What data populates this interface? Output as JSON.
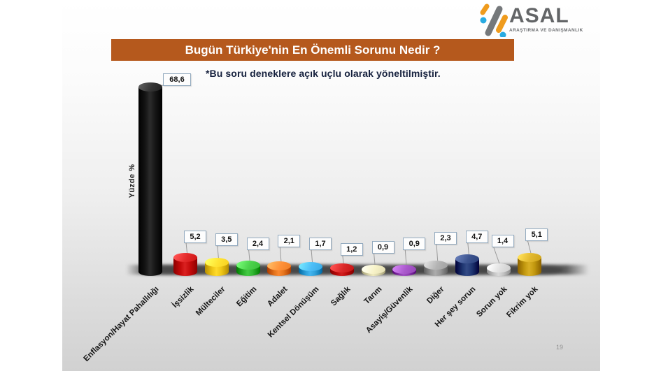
{
  "brand": {
    "name": "ASAL",
    "tagline": "ARAŞTIRMA VE DANIŞMANLIK",
    "icon_colors": {
      "gray": "#75787b",
      "orange": "#ef9b1d",
      "blue": "#29abe2"
    }
  },
  "slide": {
    "title": "Bugün Türkiye'nin En Önemli Sorunu Nedir ?",
    "note": "*Bu soru deneklere açık uçlu olarak yöneltilmiştir.",
    "page_number": "19",
    "title_bar_color": "#b5591d"
  },
  "chart_data": {
    "type": "bar",
    "style": "3d-cylinder",
    "title": "Bugün Türkiye'nin En Önemli Sorunu Nedir ?",
    "ylabel": "Yüzde %",
    "xlabel": "",
    "ylim": [
      0,
      70
    ],
    "grid": false,
    "legend": false,
    "categories": [
      "Enflasyon/Hayat Pahallılığı",
      "İşsizlik",
      "Mülteciler",
      "Eğitim",
      "Adalet",
      "Kentsel Dönüşüm",
      "Sağlık",
      "Tarım",
      "Asayiş/Güvenlik",
      "Diğer",
      "Her şey sorun",
      "Sorun yok",
      "Fikrim yok"
    ],
    "values": [
      68.6,
      5.2,
      3.5,
      2.4,
      2.1,
      1.7,
      1.2,
      0.9,
      0.9,
      2.3,
      4.7,
      1.4,
      5.1
    ],
    "value_labels": [
      "68,6",
      "5,2",
      "3,5",
      "2,4",
      "2,1",
      "1,7",
      "1,2",
      "0,9",
      "0,9",
      "2,3",
      "4,7",
      "1,4",
      "5,1"
    ],
    "bar_colors": [
      "#161616",
      "#c40b0b",
      "#eec515",
      "#2eb42e",
      "#e4731b",
      "#2d9fd9",
      "#bb0a0a",
      "#d9d4a9",
      "#8c3bae",
      "#969696",
      "#1e3570",
      "#c3c3c3",
      "#c3990f"
    ]
  }
}
